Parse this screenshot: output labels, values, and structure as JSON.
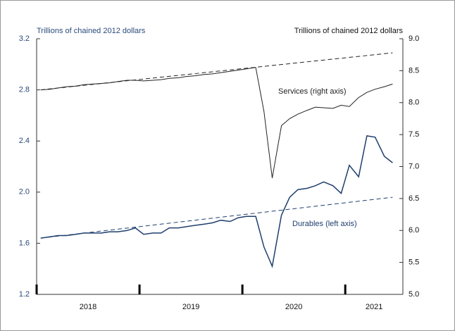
{
  "chart_data": {
    "type": "line",
    "y_axis_title": "Trillions of chained 2012 dollars",
    "y2_axis_title": "Trillions of chained 2012 dollars",
    "x": [
      2018.04,
      2018.13,
      2018.21,
      2018.29,
      2018.38,
      2018.46,
      2018.54,
      2018.63,
      2018.71,
      2018.79,
      2018.88,
      2018.96,
      2019.04,
      2019.13,
      2019.21,
      2019.29,
      2019.38,
      2019.46,
      2019.54,
      2019.63,
      2019.71,
      2019.79,
      2019.88,
      2019.96,
      2020.04,
      2020.13,
      2020.21,
      2020.29,
      2020.38,
      2020.46,
      2020.54,
      2020.63,
      2020.71,
      2020.79,
      2020.88,
      2020.96,
      2021.04,
      2021.13,
      2021.21,
      2021.29,
      2021.38,
      2021.46
    ],
    "series": [
      {
        "name": "Services (right axis)",
        "color": "#222222",
        "axis": "y2",
        "values": [
          8.2,
          8.21,
          8.23,
          8.25,
          8.26,
          8.28,
          8.29,
          8.3,
          8.31,
          8.33,
          8.35,
          8.35,
          8.34,
          8.35,
          8.36,
          8.38,
          8.39,
          8.41,
          8.42,
          8.44,
          8.45,
          8.47,
          8.49,
          8.51,
          8.53,
          8.55,
          7.86,
          6.82,
          7.64,
          7.75,
          7.82,
          7.88,
          7.93,
          7.92,
          7.91,
          7.96,
          7.94,
          8.08,
          8.16,
          8.21,
          8.25,
          8.29
        ]
      },
      {
        "name": "Durables (left axis)",
        "color": "#1f3f6e",
        "axis": "y",
        "values": [
          1.64,
          1.65,
          1.66,
          1.66,
          1.67,
          1.68,
          1.68,
          1.68,
          1.69,
          1.69,
          1.7,
          1.72,
          1.67,
          1.68,
          1.68,
          1.72,
          1.72,
          1.73,
          1.74,
          1.75,
          1.76,
          1.78,
          1.77,
          1.8,
          1.81,
          1.81,
          1.57,
          1.42,
          1.82,
          1.96,
          2.02,
          2.03,
          2.05,
          2.08,
          2.05,
          1.99,
          2.21,
          2.12,
          2.44,
          2.43,
          2.28,
          2.23
        ]
      }
    ],
    "trends": [
      {
        "color": "#222222",
        "axis": "y2",
        "style": "dashed",
        "x": [
          2018.04,
          2021.46
        ],
        "values": [
          8.2,
          8.78
        ]
      },
      {
        "color": "#1f3f6e",
        "axis": "y",
        "style": "dashed",
        "x": [
          2018.04,
          2021.46
        ],
        "values": [
          1.64,
          1.96
        ]
      }
    ],
    "xlim": [
      2018,
      2021.56
    ],
    "xticks": [
      2018,
      2019,
      2020,
      2021
    ],
    "x_labels": [
      {
        "value": 2018.5,
        "label": "2018"
      },
      {
        "value": 2019.5,
        "label": "2019"
      },
      {
        "value": 2020.5,
        "label": "2020"
      },
      {
        "value": 2021.28,
        "label": "2021"
      }
    ],
    "ylim": [
      1.2,
      3.2
    ],
    "yticks": [
      1.2,
      1.6,
      {
        "value": 2,
        "label": "2.0"
      },
      2.4,
      2.8,
      3.2
    ],
    "y2lim": [
      5,
      9
    ],
    "y2ticks": [
      {
        "value": 5,
        "label": "5.0"
      },
      5.5,
      {
        "value": 6,
        "label": "6.0"
      },
      6.5,
      {
        "value": 7,
        "label": "7.0"
      },
      7.5,
      {
        "value": 8,
        "label": "8.0"
      },
      8.5,
      {
        "value": 9,
        "label": "9.0"
      }
    ]
  }
}
